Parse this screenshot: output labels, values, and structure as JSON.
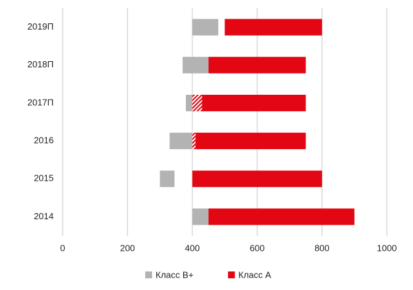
{
  "chart_data": {
    "type": "floating-bar",
    "orientation": "horizontal",
    "categories": [
      "2019П",
      "2018П",
      "2017П",
      "2016",
      "2015",
      "2014"
    ],
    "series": [
      {
        "name": "Класс В+",
        "color": "#b3b3b3",
        "start": [
          400,
          370,
          380,
          330,
          300,
          400
        ],
        "end": [
          480,
          450,
          400,
          400,
          345,
          450
        ]
      },
      {
        "color": "#e30613",
        "hatch": true,
        "start": [
          null,
          null,
          400,
          400,
          null,
          null
        ],
        "end": [
          null,
          null,
          430,
          410,
          null,
          null
        ]
      },
      {
        "name": "Класс А",
        "color": "#e30613",
        "start": [
          500,
          450,
          430,
          410,
          400,
          450
        ],
        "end": [
          800,
          750,
          750,
          750,
          800,
          900
        ]
      }
    ],
    "xlim": [
      0,
      1000
    ],
    "xticks": [
      0,
      200,
      400,
      600,
      800,
      1000
    ],
    "grid": true,
    "legend": "bottom"
  }
}
